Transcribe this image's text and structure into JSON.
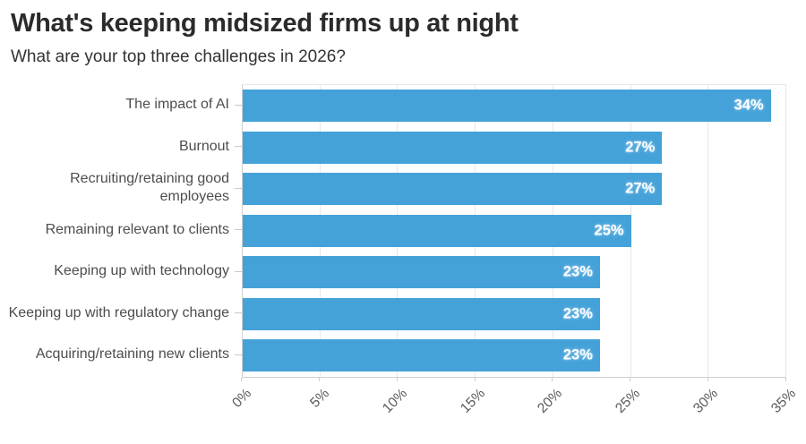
{
  "header": {
    "title": "What's keeping midsized firms up at night",
    "subtitle": "What are your top three challenges in 2026?"
  },
  "chart_data": {
    "type": "bar",
    "orientation": "horizontal",
    "title": "What's keeping midsized firms up at night",
    "subtitle": "What are your top three challenges in 2026?",
    "categories": [
      "The impact of AI",
      "Burnout",
      "Recruiting/retaining good employees",
      "Remaining relevant to clients",
      "Keeping up with technology",
      "Keeping up with regulatory change",
      "Acquiring/retaining new clients"
    ],
    "values": [
      34,
      27,
      27,
      25,
      23,
      23,
      23
    ],
    "value_labels": [
      "34%",
      "27%",
      "27%",
      "25%",
      "23%",
      "23%",
      "23%"
    ],
    "xlabel": "",
    "ylabel": "",
    "xlim": [
      0,
      35
    ],
    "x_tick_values": [
      0,
      5,
      10,
      15,
      20,
      25,
      30,
      35
    ],
    "x_tick_labels": [
      "0%",
      "5%",
      "10%",
      "15%",
      "20%",
      "25%",
      "30%",
      "35%"
    ],
    "grid": true,
    "legend": false,
    "bar_color": "#45a2d9",
    "value_label_color": "#ffffff",
    "gridline_color": "#e7e7e7",
    "axis_line_color": "#cfcfcf"
  }
}
